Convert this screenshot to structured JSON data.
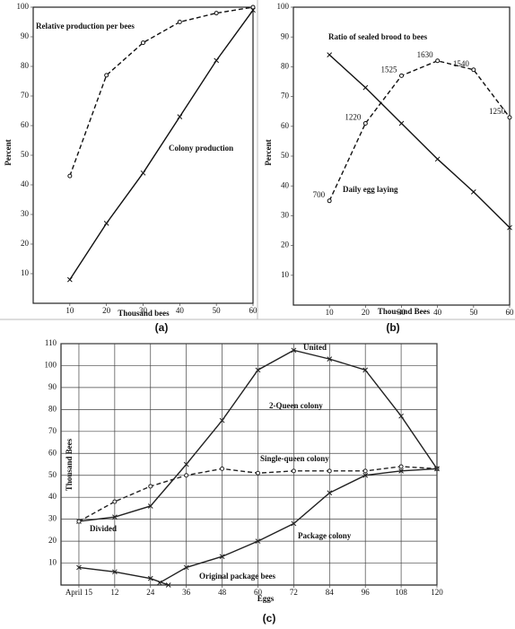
{
  "chart_data": [
    {
      "type": "line",
      "label": "(a)",
      "xlabel": "Thousand bees",
      "ylabel": "Percent",
      "x": [
        10,
        20,
        30,
        40,
        50,
        60
      ],
      "xlim": [
        0,
        60
      ],
      "xticks": [
        10,
        20,
        30,
        40,
        50,
        60
      ],
      "ylim": [
        0,
        100
      ],
      "yticks": [
        10,
        20,
        30,
        40,
        50,
        60,
        70,
        80,
        90,
        100
      ],
      "grid": false,
      "series": [
        {
          "name": "Relative production per bees",
          "color": "#111111",
          "dashed": true,
          "marker": "o",
          "values": [
            43,
            77,
            88,
            95,
            98,
            100
          ]
        },
        {
          "name": "Colony production",
          "color": "#111111",
          "dashed": false,
          "marker": "x",
          "values": [
            8,
            27,
            44,
            63,
            82,
            99
          ]
        }
      ]
    },
    {
      "type": "line",
      "label": "(b)",
      "xlabel": "Thousand Bees",
      "ylabel": "Percent",
      "x": [
        10,
        20,
        30,
        40,
        50,
        60
      ],
      "xlim": [
        0,
        60
      ],
      "xticks": [
        10,
        20,
        30,
        40,
        50,
        60
      ],
      "ylim": [
        0,
        100
      ],
      "yticks": [
        10,
        20,
        30,
        40,
        50,
        60,
        70,
        80,
        90,
        100
      ],
      "grid": false,
      "series": [
        {
          "name": "Ratio of sealed brood to bees",
          "color": "#111111",
          "dashed": false,
          "marker": "x",
          "values": [
            84,
            73,
            61,
            49,
            38,
            26
          ]
        },
        {
          "name": "Daily egg laying",
          "color": "#111111",
          "dashed": true,
          "marker": "o",
          "values": [
            35,
            61,
            77,
            82,
            79,
            63
          ],
          "point_labels": [
            700,
            1220,
            1525,
            1630,
            1540,
            1250
          ]
        }
      ]
    },
    {
      "type": "line",
      "label": "(c)",
      "xlabel": "Eggs",
      "ylabel": "Thousand Bees",
      "xlim": [
        -6,
        120
      ],
      "xticks": [
        {
          "value": 0,
          "label": "April 15"
        },
        12,
        24,
        36,
        48,
        60,
        72,
        84,
        96,
        108,
        120
      ],
      "ylim": [
        0,
        110
      ],
      "yticks": [
        10,
        20,
        30,
        40,
        50,
        60,
        70,
        80,
        90,
        100,
        110
      ],
      "grid": true,
      "annotations": [
        "United",
        "Divided"
      ],
      "series": [
        {
          "name": "2-Queen colony",
          "color": "#222222",
          "dashed": false,
          "marker": "x",
          "x": [
            0,
            12,
            24,
            36,
            48,
            60,
            72,
            84,
            96,
            108,
            120
          ],
          "values": [
            29,
            31,
            36,
            55,
            75,
            98,
            107,
            103,
            98,
            77,
            53
          ]
        },
        {
          "name": "Single-queen colony",
          "color": "#222222",
          "dashed": true,
          "marker": "o",
          "x": [
            0,
            12,
            24,
            36,
            48,
            60,
            72,
            84,
            96,
            108,
            120
          ],
          "values": [
            29,
            38,
            45,
            50,
            53,
            51,
            52,
            52,
            52,
            54,
            53
          ]
        },
        {
          "name": "Package colony",
          "color": "#222222",
          "dashed": false,
          "marker": "x",
          "x": [
            27,
            36,
            48,
            60,
            72,
            84,
            96,
            108,
            120
          ],
          "values": [
            1,
            8,
            13,
            20,
            28,
            42,
            50,
            52,
            53
          ]
        },
        {
          "name": "Original package bees",
          "color": "#222222",
          "dashed": false,
          "marker": "x",
          "x": [
            0,
            12,
            24,
            30
          ],
          "values": [
            8,
            6,
            3,
            0
          ]
        }
      ]
    }
  ]
}
